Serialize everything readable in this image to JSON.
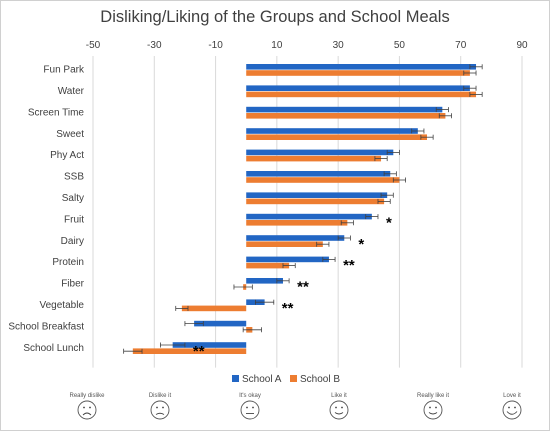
{
  "chart_data": {
    "type": "bar",
    "orientation": "horizontal",
    "title": "Disliking/Liking of the Groups and School Meals",
    "xlim": [
      -50,
      90
    ],
    "xticks": [
      -50,
      -30,
      -10,
      10,
      30,
      50,
      70,
      90
    ],
    "grid": true,
    "legend_position": "bottom",
    "categories": [
      "Fun Park",
      "Water",
      "Screen Time",
      "Sweet",
      "Phy Act",
      "SSB",
      "Salty",
      "Fruit",
      "Dairy",
      "Protein",
      "Fiber",
      "Vegetable",
      "School Breakfast",
      "School Lunch"
    ],
    "series": [
      {
        "name": "School A",
        "color": "#2266c4",
        "values": [
          75,
          73,
          64,
          56,
          48,
          47,
          46,
          41,
          32,
          27,
          12,
          6,
          -17,
          -24
        ],
        "errors": [
          2,
          2,
          2,
          2,
          2,
          2,
          2,
          2,
          2,
          2,
          2,
          3,
          3,
          4
        ]
      },
      {
        "name": "School B",
        "color": "#ed7d31",
        "values": [
          73,
          75,
          65,
          59,
          44,
          50,
          45,
          33,
          25,
          14,
          -1,
          -21,
          2,
          -37
        ],
        "errors": [
          2,
          2,
          2,
          2,
          2,
          2,
          2,
          2,
          2,
          2,
          3,
          2,
          3,
          3
        ]
      }
    ],
    "significance": [
      "",
      "",
      "",
      "",
      "",
      "",
      "",
      "*",
      "*",
      "**",
      "**",
      "**",
      "",
      "**"
    ],
    "face_labels": [
      "Really dislike",
      "Dislike it",
      "It's okay",
      "Like it",
      "Really like it",
      "Love it"
    ]
  }
}
